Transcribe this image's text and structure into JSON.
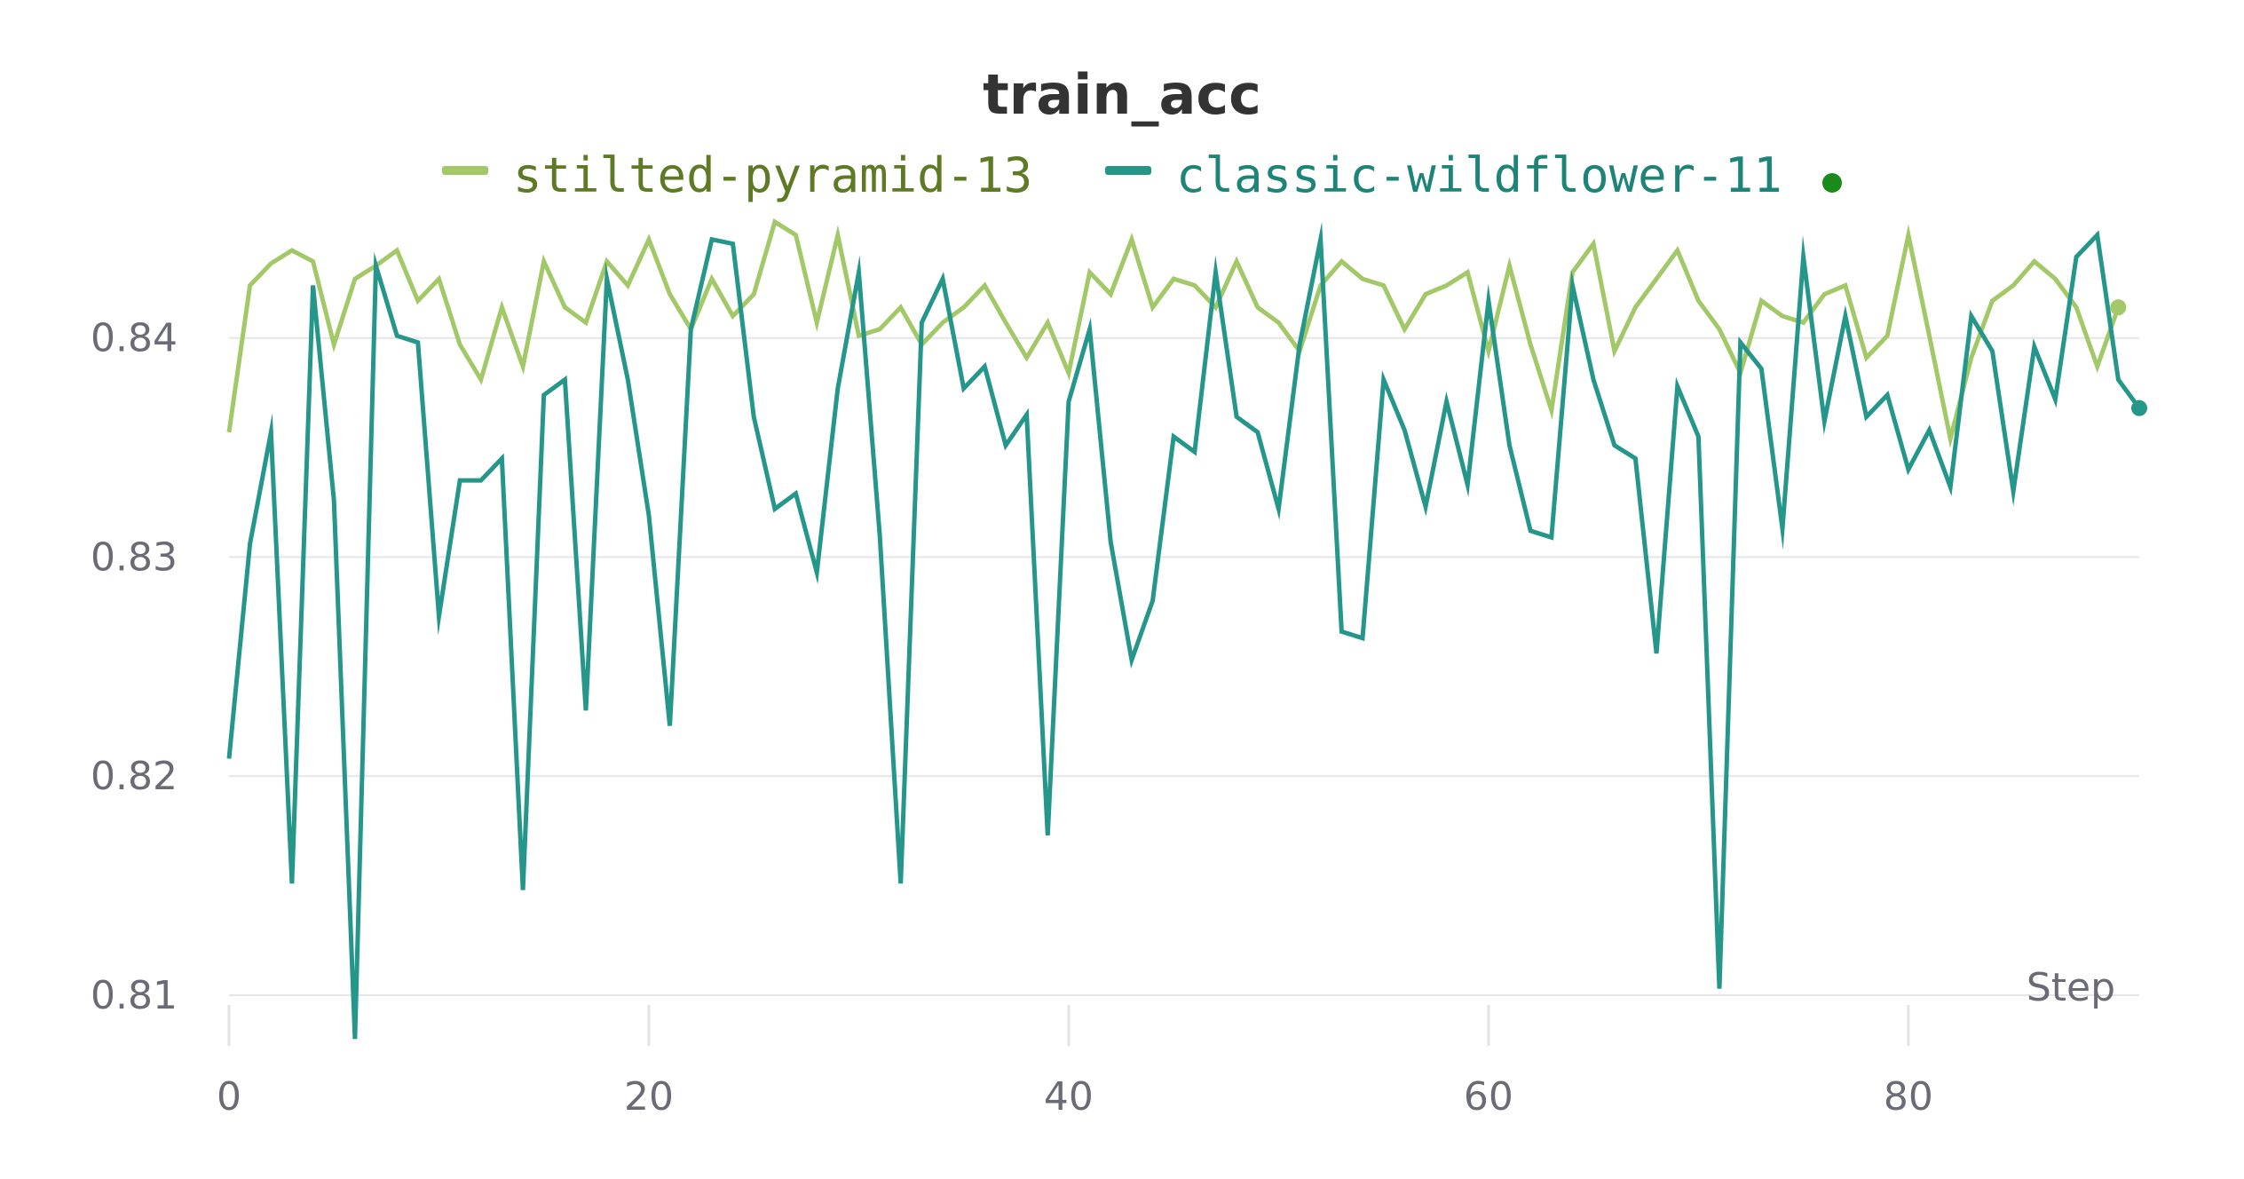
{
  "chart_data": {
    "type": "line",
    "title": "train_acc",
    "xlabel": "Step",
    "ylabel": "",
    "xlim": [
      0,
      91
    ],
    "ylim": [
      0.8085,
      0.8455
    ],
    "xticks": [
      0,
      20,
      40,
      60,
      80
    ],
    "yticks": [
      0.81,
      0.82,
      0.83,
      0.84
    ],
    "ytick_labels": [
      "0.81",
      "0.82",
      "0.83",
      "0.84"
    ],
    "xtick_labels": [
      "0",
      "20",
      "40",
      "60",
      "80"
    ],
    "grid": "horizontal",
    "legend_position": "top",
    "legend_marker_color": "#1a8a1a",
    "series": [
      {
        "name": "stilted-pyramid-13",
        "color": "#a2c867",
        "label_color": "#5e7a25",
        "values": [
          0.8357,
          0.8424,
          0.8434,
          0.844,
          0.8435,
          0.8397,
          0.8427,
          0.8433,
          0.844,
          0.8417,
          0.8427,
          0.8397,
          0.8381,
          0.8414,
          0.8387,
          0.8435,
          0.8414,
          0.8407,
          0.8435,
          0.8424,
          0.8445,
          0.842,
          0.8404,
          0.8427,
          0.841,
          0.842,
          0.8453,
          0.8447,
          0.8407,
          0.8447,
          0.8401,
          0.8404,
          0.8414,
          0.8397,
          0.8407,
          0.8414,
          0.8424,
          0.8407,
          0.8391,
          0.8407,
          0.8384,
          0.843,
          0.842,
          0.8445,
          0.8414,
          0.8427,
          0.8424,
          0.8414,
          0.8435,
          0.8414,
          0.8407,
          0.8394,
          0.8424,
          0.8435,
          0.8427,
          0.8424,
          0.8404,
          0.842,
          0.8424,
          0.843,
          0.8394,
          0.8433,
          0.8397,
          0.8367,
          0.843,
          0.8443,
          0.8394,
          0.8414,
          0.8427,
          0.844,
          0.8417,
          0.8404,
          0.8384,
          0.8417,
          0.841,
          0.8407,
          0.842,
          0.8424,
          0.8391,
          0.8401,
          0.8447,
          0.8401,
          0.8354,
          0.8391,
          0.8417,
          0.8424,
          0.8435,
          0.8427,
          0.8414,
          0.8387,
          0.8414
        ]
      },
      {
        "name": "classic-wildflower-11",
        "color": "#24968a",
        "label_color": "#1f8478",
        "values": [
          0.8208,
          0.8306,
          0.8357,
          0.8151,
          0.8424,
          0.8326,
          0.808,
          0.8433,
          0.8401,
          0.8398,
          0.8273,
          0.8335,
          0.8335,
          0.8345,
          0.8148,
          0.8374,
          0.8381,
          0.823,
          0.8427,
          0.8381,
          0.8319,
          0.8223,
          0.8404,
          0.8445,
          0.8443,
          0.8364,
          0.8322,
          0.8329,
          0.8293,
          0.8377,
          0.843,
          0.831,
          0.8151,
          0.8407,
          0.8427,
          0.8377,
          0.8387,
          0.8351,
          0.8365,
          0.8173,
          0.8371,
          0.8404,
          0.8307,
          0.8253,
          0.828,
          0.8355,
          0.8348,
          0.843,
          0.8364,
          0.8357,
          0.8322,
          0.8397,
          0.8445,
          0.8266,
          0.8263,
          0.8381,
          0.8358,
          0.8323,
          0.8371,
          0.8333,
          0.8417,
          0.8351,
          0.8312,
          0.8309,
          0.8424,
          0.8381,
          0.8351,
          0.8345,
          0.8256,
          0.8378,
          0.8355,
          0.8103,
          0.8398,
          0.8386,
          0.8313,
          0.8437,
          0.8362,
          0.841,
          0.8364,
          0.8374,
          0.834,
          0.8358,
          0.8332,
          0.841,
          0.8394,
          0.833,
          0.8396,
          0.8372,
          0.8437,
          0.8447,
          0.8381,
          0.8368
        ]
      }
    ]
  }
}
